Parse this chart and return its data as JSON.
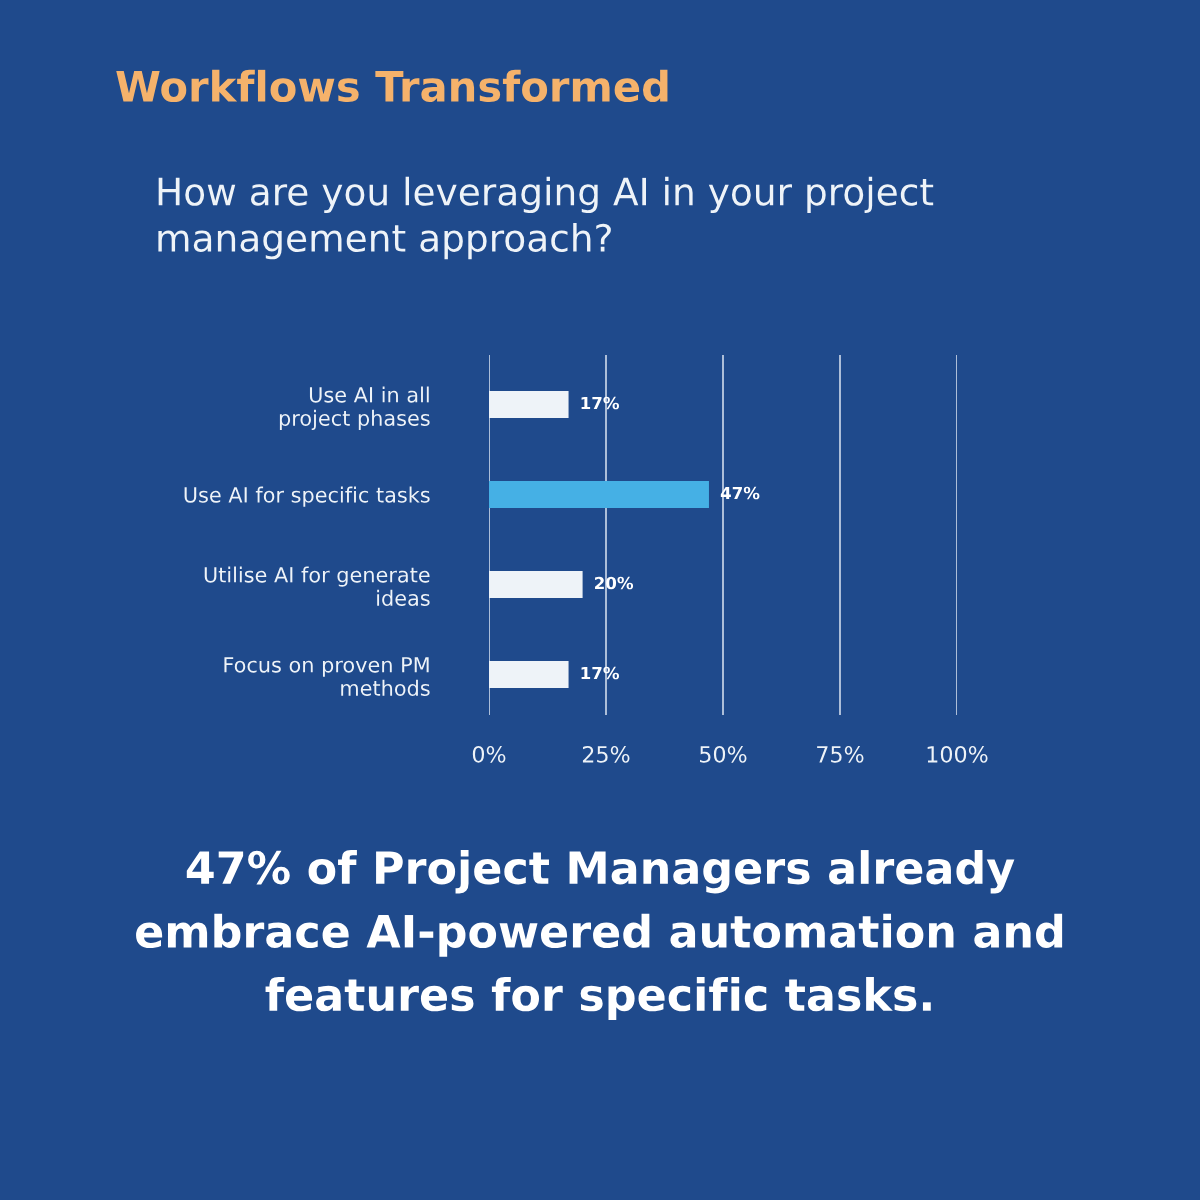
{
  "chart_data": {
    "type": "bar",
    "orientation": "horizontal",
    "title": "Workflows Transformed",
    "subtitle": "How are you leveraging AI in your project\nmanagement approach?",
    "categories": [
      "Use AI in all\nproject phases",
      "Use AI for specific tasks",
      "Utilise AI for generate\nideas",
      "Focus on proven PM\nmethods"
    ],
    "values": [
      17,
      47,
      20,
      17
    ],
    "colors": [
      "#eef3f8",
      "#45b0e5",
      "#eef3f8",
      "#eef3f8"
    ],
    "value_labels": [
      "17%",
      "47%",
      "20%",
      "17%"
    ],
    "xlim": [
      0,
      100
    ],
    "xticks": [
      {
        "value": 0,
        "label": "0%"
      },
      {
        "value": 25,
        "label": "25%"
      },
      {
        "value": 50,
        "label": "50%"
      },
      {
        "value": 75,
        "label": "75%"
      },
      {
        "value": 100,
        "label": "100%"
      }
    ],
    "grid": "x",
    "annotations": [
      "47% of Project Managers already\nembrace AI-powered automation and\nfeatures for specific tasks."
    ]
  }
}
